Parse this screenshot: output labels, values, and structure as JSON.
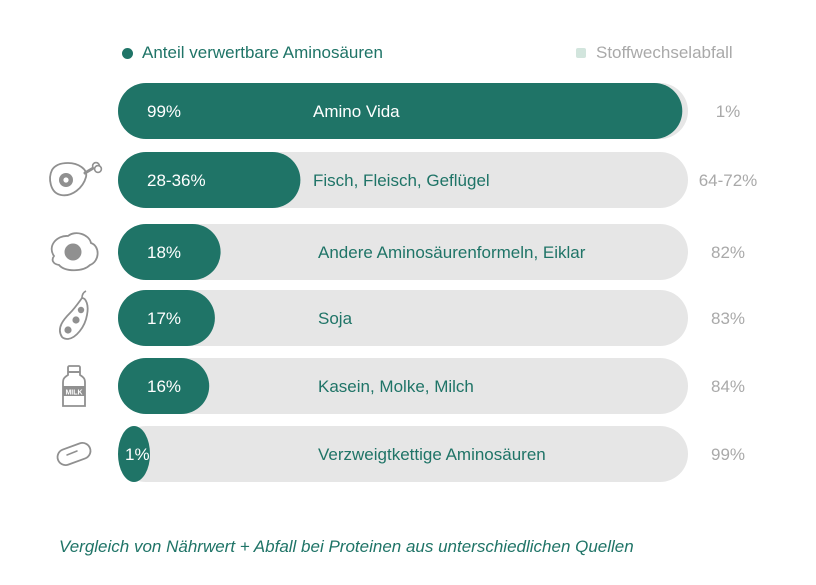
{
  "chart_data": {
    "type": "bar",
    "orientation": "horizontal",
    "stacked": true,
    "legend": [
      {
        "label": "Anteil verwertbare Aminosäuren",
        "color": "#1f7467"
      },
      {
        "label": "Stoffwechselabfall",
        "color": "#d2e5dd"
      }
    ],
    "categories": [
      "Amino Vida",
      "Fisch, Fleisch, Geflügel",
      "Andere Aminosäurenformeln, Eiklar",
      "Soja",
      "Kasein, Molke, Milch",
      "Verzweigtkettige Aminosäuren"
    ],
    "icons": [
      "",
      "ham-leg-icon",
      "fried-egg-icon",
      "soybean-pod-icon",
      "milk-bottle-icon",
      "capsule-icon"
    ],
    "series": [
      {
        "name": "Anteil verwertbare Aminosäuren",
        "values": [
          99,
          32,
          18,
          17,
          16,
          1
        ],
        "labels": [
          "99%",
          "28-36%",
          "18%",
          "17%",
          "16%",
          "1%"
        ]
      },
      {
        "name": "Stoffwechselabfall",
        "values": [
          1,
          68,
          82,
          83,
          84,
          99
        ],
        "labels": [
          "1%",
          "64-72%",
          "82%",
          "83%",
          "84%",
          "99%"
        ]
      }
    ],
    "xlim": [
      0,
      100
    ],
    "grid": false,
    "legend_position": "top",
    "caption": "Vergleich von Nährwert + Abfall bei Proteinen aus unterschiedlichen Quellen",
    "colors": {
      "used": "#1f7467",
      "waste_track": "#e6e6e6",
      "waste_label": "#a9a9a9",
      "category_label": "#1f7467"
    }
  }
}
